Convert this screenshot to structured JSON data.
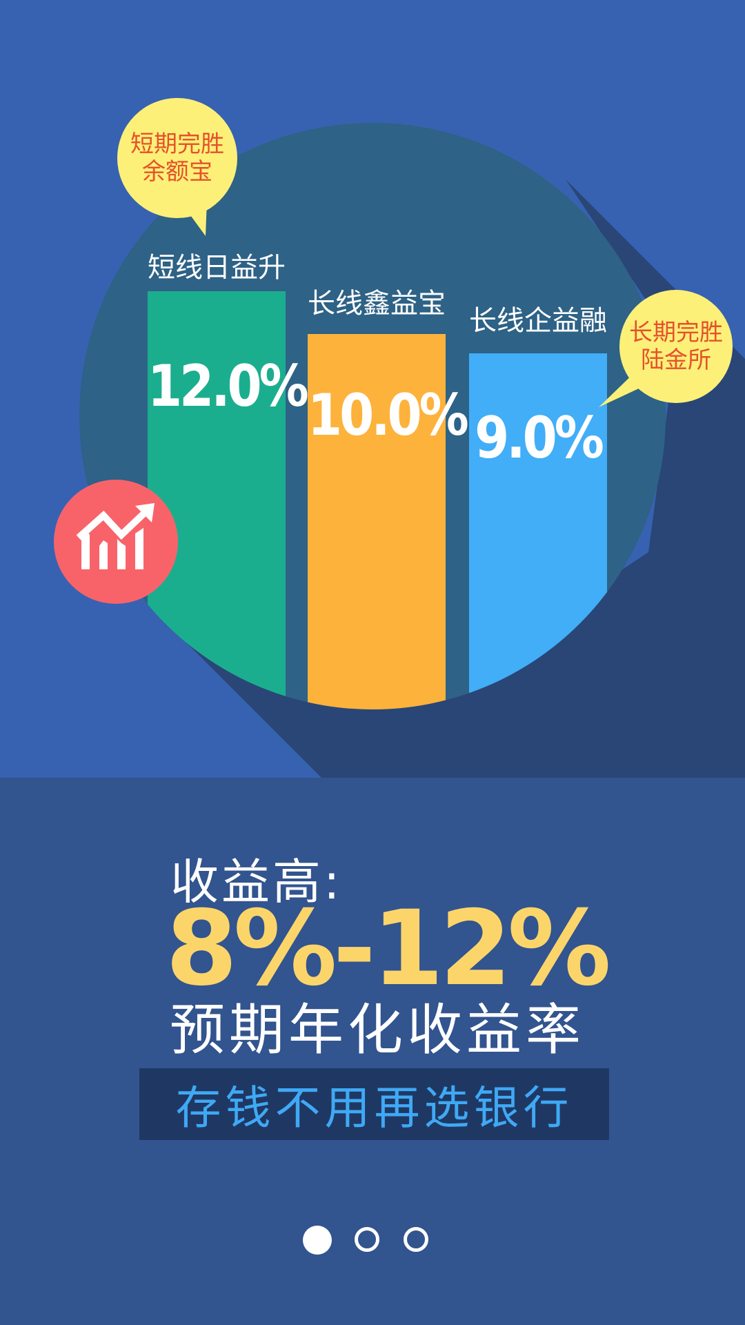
{
  "chart_data": {
    "type": "bar",
    "categories": [
      "短线日益升",
      "长线鑫益宝",
      "长线企益融"
    ],
    "values": [
      12.0,
      10.0,
      9.0
    ],
    "value_labels": [
      "12.0%",
      "10.0%",
      "9.0%"
    ],
    "colors": [
      "#1bae8e",
      "#fdb23c",
      "#41aef7"
    ]
  },
  "bubbles": {
    "short_term": {
      "line1": "短期完胜",
      "line2": "余额宝"
    },
    "long_term": {
      "line1": "长期完胜",
      "line2": "陆金所"
    }
  },
  "icons": {
    "chart": "trending-up-icon"
  },
  "headline": {
    "prefix": "收益高:",
    "range": "8%-12%",
    "subtitle": "预期年化收益率"
  },
  "slogan": "存钱不用再选银行",
  "pager": {
    "count": 3,
    "active": 1
  }
}
